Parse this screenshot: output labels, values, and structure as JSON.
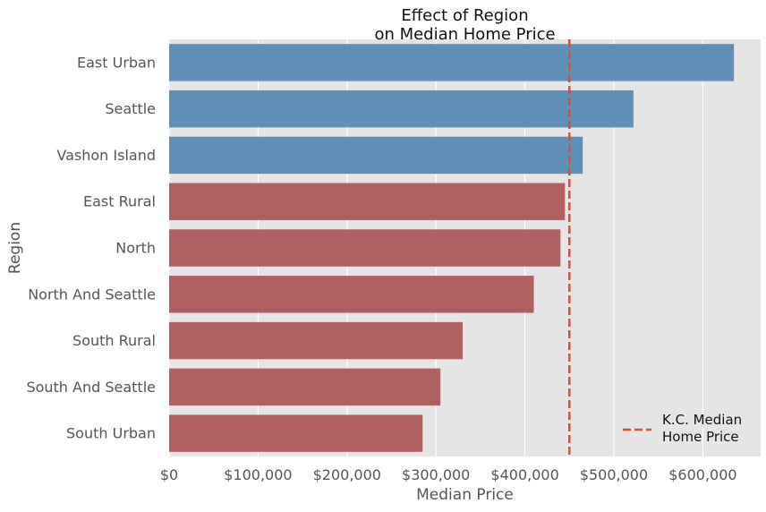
{
  "chart_data": {
    "type": "bar",
    "orientation": "horizontal",
    "title": "Effect of Region\non Median Home Price",
    "xlabel": "Median Price",
    "ylabel": "Region",
    "xlim": [
      0,
      665000
    ],
    "xticks": [
      0,
      100000,
      200000,
      300000,
      400000,
      500000,
      600000
    ],
    "xtick_labels": [
      "$0",
      "$100,000",
      "$200,000",
      "$300,000",
      "$400,000",
      "$500,000",
      "$600,000"
    ],
    "categories": [
      "East Urban",
      "Seattle",
      "Vashon Island",
      "East Rural",
      "North",
      "North And Seattle",
      "South Rural",
      "South And Seattle",
      "South Urban"
    ],
    "values": [
      635000,
      522000,
      465000,
      445000,
      440000,
      410000,
      330000,
      305000,
      285000
    ],
    "bar_colors": [
      "#6090b8",
      "#6090b8",
      "#6090b8",
      "#b06060",
      "#b06060",
      "#b06060",
      "#b06060",
      "#b06060",
      "#b06060"
    ],
    "reference_line": {
      "value": 450000,
      "label": "K.C. Median\nHome Price",
      "color": "#e24a33",
      "style": "dashed"
    },
    "legend": {
      "placement": "bottom-right",
      "entries": [
        "K.C. Median\nHome Price"
      ]
    },
    "grid": true,
    "background": "#e5e5e5"
  }
}
